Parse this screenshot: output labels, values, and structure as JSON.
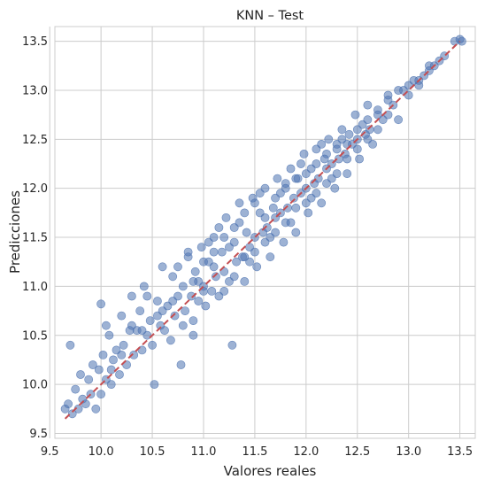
{
  "chart_data": {
    "type": "scatter",
    "title": "KNN – Test",
    "xlabel": "Valores reales",
    "ylabel": "Predicciones",
    "xlim": [
      9.55,
      13.65
    ],
    "ylim": [
      9.45,
      13.65
    ],
    "xticks": [
      {
        "value": 9.5,
        "label": "9.5"
      },
      {
        "value": 10.0,
        "label": "10.0"
      },
      {
        "value": 10.5,
        "label": "10.5"
      },
      {
        "value": 11.0,
        "label": "11.0"
      },
      {
        "value": 11.5,
        "label": "11.5"
      },
      {
        "value": 12.0,
        "label": "12.0"
      },
      {
        "value": 12.5,
        "label": "12.5"
      },
      {
        "value": 13.0,
        "label": "13.0"
      },
      {
        "value": 13.5,
        "label": "13.5"
      }
    ],
    "yticks": [
      {
        "value": 9.5,
        "label": "9.5"
      },
      {
        "value": 10.0,
        "label": "10.0"
      },
      {
        "value": 10.5,
        "label": "10.5"
      },
      {
        "value": 11.0,
        "label": "11.0"
      },
      {
        "value": 11.5,
        "label": "11.5"
      },
      {
        "value": 12.0,
        "label": "12.0"
      },
      {
        "value": 12.5,
        "label": "12.5"
      },
      {
        "value": 13.0,
        "label": "13.0"
      },
      {
        "value": 13.5,
        "label": "13.5"
      }
    ],
    "grid": true,
    "point_color": "#4c72b0",
    "point_opacity": 0.55,
    "reference_line": {
      "style": "dashed",
      "color": "#c44e52",
      "from": [
        9.65,
        9.65
      ],
      "to": [
        13.5,
        13.5
      ]
    },
    "points": [
      [
        9.65,
        9.75
      ],
      [
        9.68,
        9.8
      ],
      [
        9.7,
        10.4
      ],
      [
        9.72,
        9.7
      ],
      [
        9.75,
        9.95
      ],
      [
        9.78,
        9.75
      ],
      [
        9.8,
        10.1
      ],
      [
        9.82,
        9.85
      ],
      [
        9.85,
        9.8
      ],
      [
        9.88,
        10.05
      ],
      [
        9.9,
        9.9
      ],
      [
        9.92,
        10.2
      ],
      [
        9.95,
        9.75
      ],
      [
        9.98,
        10.15
      ],
      [
        10.0,
        9.9
      ],
      [
        10.02,
        10.3
      ],
      [
        10.05,
        10.05
      ],
      [
        10.08,
        10.5
      ],
      [
        10.1,
        10.0
      ],
      [
        10.12,
        10.25
      ],
      [
        10.0,
        10.82
      ],
      [
        10.05,
        10.6
      ],
      [
        10.15,
        10.35
      ],
      [
        10.18,
        10.1
      ],
      [
        10.2,
        10.7
      ],
      [
        10.22,
        10.4
      ],
      [
        10.25,
        10.2
      ],
      [
        10.28,
        10.55
      ],
      [
        10.3,
        10.9
      ],
      [
        10.32,
        10.3
      ],
      [
        10.35,
        10.55
      ],
      [
        10.38,
        10.75
      ],
      [
        10.4,
        10.35
      ],
      [
        10.42,
        11.0
      ],
      [
        10.45,
        10.5
      ],
      [
        10.48,
        10.65
      ],
      [
        10.5,
        10.4
      ],
      [
        10.52,
        10.0
      ],
      [
        10.55,
        10.85
      ],
      [
        10.58,
        10.6
      ],
      [
        10.6,
        11.2
      ],
      [
        10.62,
        10.55
      ],
      [
        10.65,
        10.8
      ],
      [
        10.68,
        10.45
      ],
      [
        10.7,
        11.1
      ],
      [
        10.72,
        10.7
      ],
      [
        10.75,
        10.9
      ],
      [
        10.78,
        10.2
      ],
      [
        10.8,
        11.0
      ],
      [
        10.82,
        10.75
      ],
      [
        10.85,
        11.3
      ],
      [
        10.88,
        10.9
      ],
      [
        10.9,
        10.65
      ],
      [
        10.92,
        11.15
      ],
      [
        10.95,
        10.85
      ],
      [
        10.98,
        11.4
      ],
      [
        11.0,
        11.0
      ],
      [
        11.02,
        10.8
      ],
      [
        11.05,
        11.25
      ],
      [
        11.08,
        10.95
      ],
      [
        11.1,
        11.5
      ],
      [
        11.12,
        11.1
      ],
      [
        11.15,
        10.9
      ],
      [
        11.18,
        11.35
      ],
      [
        11.2,
        11.15
      ],
      [
        11.22,
        11.7
      ],
      [
        11.25,
        11.05
      ],
      [
        11.28,
        10.4
      ],
      [
        11.3,
        11.45
      ],
      [
        11.32,
        11.25
      ],
      [
        11.35,
        11.85
      ],
      [
        11.38,
        11.3
      ],
      [
        11.4,
        11.05
      ],
      [
        11.42,
        11.55
      ],
      [
        11.45,
        11.4
      ],
      [
        11.48,
        11.9
      ],
      [
        11.5,
        11.5
      ],
      [
        11.52,
        11.2
      ],
      [
        11.55,
        11.75
      ],
      [
        11.58,
        11.55
      ],
      [
        11.6,
        12.0
      ],
      [
        11.62,
        11.6
      ],
      [
        11.65,
        11.3
      ],
      [
        11.68,
        11.8
      ],
      [
        11.7,
        11.7
      ],
      [
        11.72,
        12.1
      ],
      [
        11.75,
        11.75
      ],
      [
        11.78,
        11.45
      ],
      [
        11.8,
        12.05
      ],
      [
        11.82,
        11.8
      ],
      [
        11.85,
        12.2
      ],
      [
        11.88,
        11.9
      ],
      [
        11.9,
        11.55
      ],
      [
        11.92,
        12.1
      ],
      [
        11.95,
        11.95
      ],
      [
        11.98,
        12.35
      ],
      [
        12.0,
        12.0
      ],
      [
        12.02,
        11.75
      ],
      [
        12.05,
        12.2
      ],
      [
        12.08,
        12.05
      ],
      [
        12.1,
        12.4
      ],
      [
        12.12,
        12.1
      ],
      [
        12.15,
        11.85
      ],
      [
        12.18,
        12.3
      ],
      [
        12.2,
        12.2
      ],
      [
        12.22,
        12.5
      ],
      [
        12.25,
        12.25
      ],
      [
        12.28,
        12.0
      ],
      [
        12.3,
        12.45
      ],
      [
        12.32,
        12.3
      ],
      [
        12.35,
        12.6
      ],
      [
        12.38,
        12.35
      ],
      [
        12.4,
        12.15
      ],
      [
        12.42,
        12.55
      ],
      [
        12.45,
        12.45
      ],
      [
        12.48,
        12.75
      ],
      [
        12.5,
        12.5
      ],
      [
        12.52,
        12.3
      ],
      [
        12.55,
        12.65
      ],
      [
        12.58,
        12.55
      ],
      [
        12.6,
        12.85
      ],
      [
        12.62,
        12.6
      ],
      [
        12.65,
        12.45
      ],
      [
        12.7,
        12.75
      ],
      [
        12.75,
        12.7
      ],
      [
        12.8,
        12.95
      ],
      [
        12.85,
        12.85
      ],
      [
        12.9,
        12.7
      ],
      [
        12.95,
        13.0
      ],
      [
        13.0,
        12.95
      ],
      [
        13.05,
        13.1
      ],
      [
        13.1,
        13.05
      ],
      [
        13.15,
        13.15
      ],
      [
        13.2,
        13.2
      ],
      [
        13.25,
        13.25
      ],
      [
        13.3,
        13.3
      ],
      [
        13.35,
        13.35
      ],
      [
        13.45,
        13.5
      ],
      [
        13.5,
        13.52
      ],
      [
        13.52,
        13.5
      ],
      [
        10.3,
        10.6
      ],
      [
        10.45,
        10.9
      ],
      [
        10.6,
        10.75
      ],
      [
        10.75,
        11.2
      ],
      [
        10.85,
        11.35
      ],
      [
        10.95,
        11.05
      ],
      [
        11.05,
        11.45
      ],
      [
        11.15,
        11.6
      ],
      [
        11.25,
        11.4
      ],
      [
        11.35,
        11.65
      ],
      [
        11.45,
        11.25
      ],
      [
        11.55,
        11.95
      ],
      [
        11.65,
        11.5
      ],
      [
        11.75,
        11.95
      ],
      [
        11.85,
        11.65
      ],
      [
        11.95,
        12.25
      ],
      [
        12.05,
        11.9
      ],
      [
        12.15,
        12.45
      ],
      [
        12.25,
        12.1
      ],
      [
        12.35,
        12.5
      ],
      [
        10.9,
        10.5
      ],
      [
        11.0,
        10.95
      ],
      [
        11.1,
        11.2
      ],
      [
        11.2,
        10.95
      ],
      [
        11.3,
        11.1
      ],
      [
        11.4,
        11.3
      ],
      [
        11.5,
        11.35
      ],
      [
        11.6,
        11.45
      ],
      [
        11.7,
        11.55
      ],
      [
        11.8,
        11.65
      ],
      [
        11.9,
        11.8
      ],
      [
        12.0,
        11.85
      ],
      [
        12.1,
        11.95
      ],
      [
        12.2,
        12.05
      ],
      [
        12.3,
        12.15
      ],
      [
        12.4,
        12.3
      ],
      [
        12.5,
        12.4
      ],
      [
        12.6,
        12.5
      ],
      [
        12.7,
        12.6
      ],
      [
        12.8,
        12.75
      ],
      [
        10.1,
        10.15
      ],
      [
        10.2,
        10.3
      ],
      [
        10.4,
        10.55
      ],
      [
        10.55,
        10.7
      ],
      [
        10.7,
        10.85
      ],
      [
        10.8,
        10.6
      ],
      [
        10.9,
        11.05
      ],
      [
        11.0,
        11.25
      ],
      [
        11.1,
        11.35
      ],
      [
        11.2,
        11.5
      ],
      [
        11.3,
        11.6
      ],
      [
        11.4,
        11.75
      ],
      [
        11.5,
        11.85
      ],
      [
        11.6,
        11.7
      ],
      [
        11.7,
        11.9
      ],
      [
        11.8,
        12.0
      ],
      [
        11.9,
        12.1
      ],
      [
        12.0,
        12.15
      ],
      [
        12.1,
        12.25
      ],
      [
        12.2,
        12.35
      ],
      [
        12.3,
        12.4
      ],
      [
        12.4,
        12.45
      ],
      [
        12.5,
        12.6
      ],
      [
        12.6,
        12.7
      ],
      [
        12.7,
        12.8
      ],
      [
        12.8,
        12.9
      ],
      [
        12.9,
        13.0
      ],
      [
        13.0,
        13.05
      ],
      [
        13.1,
        13.1
      ],
      [
        13.2,
        13.25
      ]
    ]
  }
}
